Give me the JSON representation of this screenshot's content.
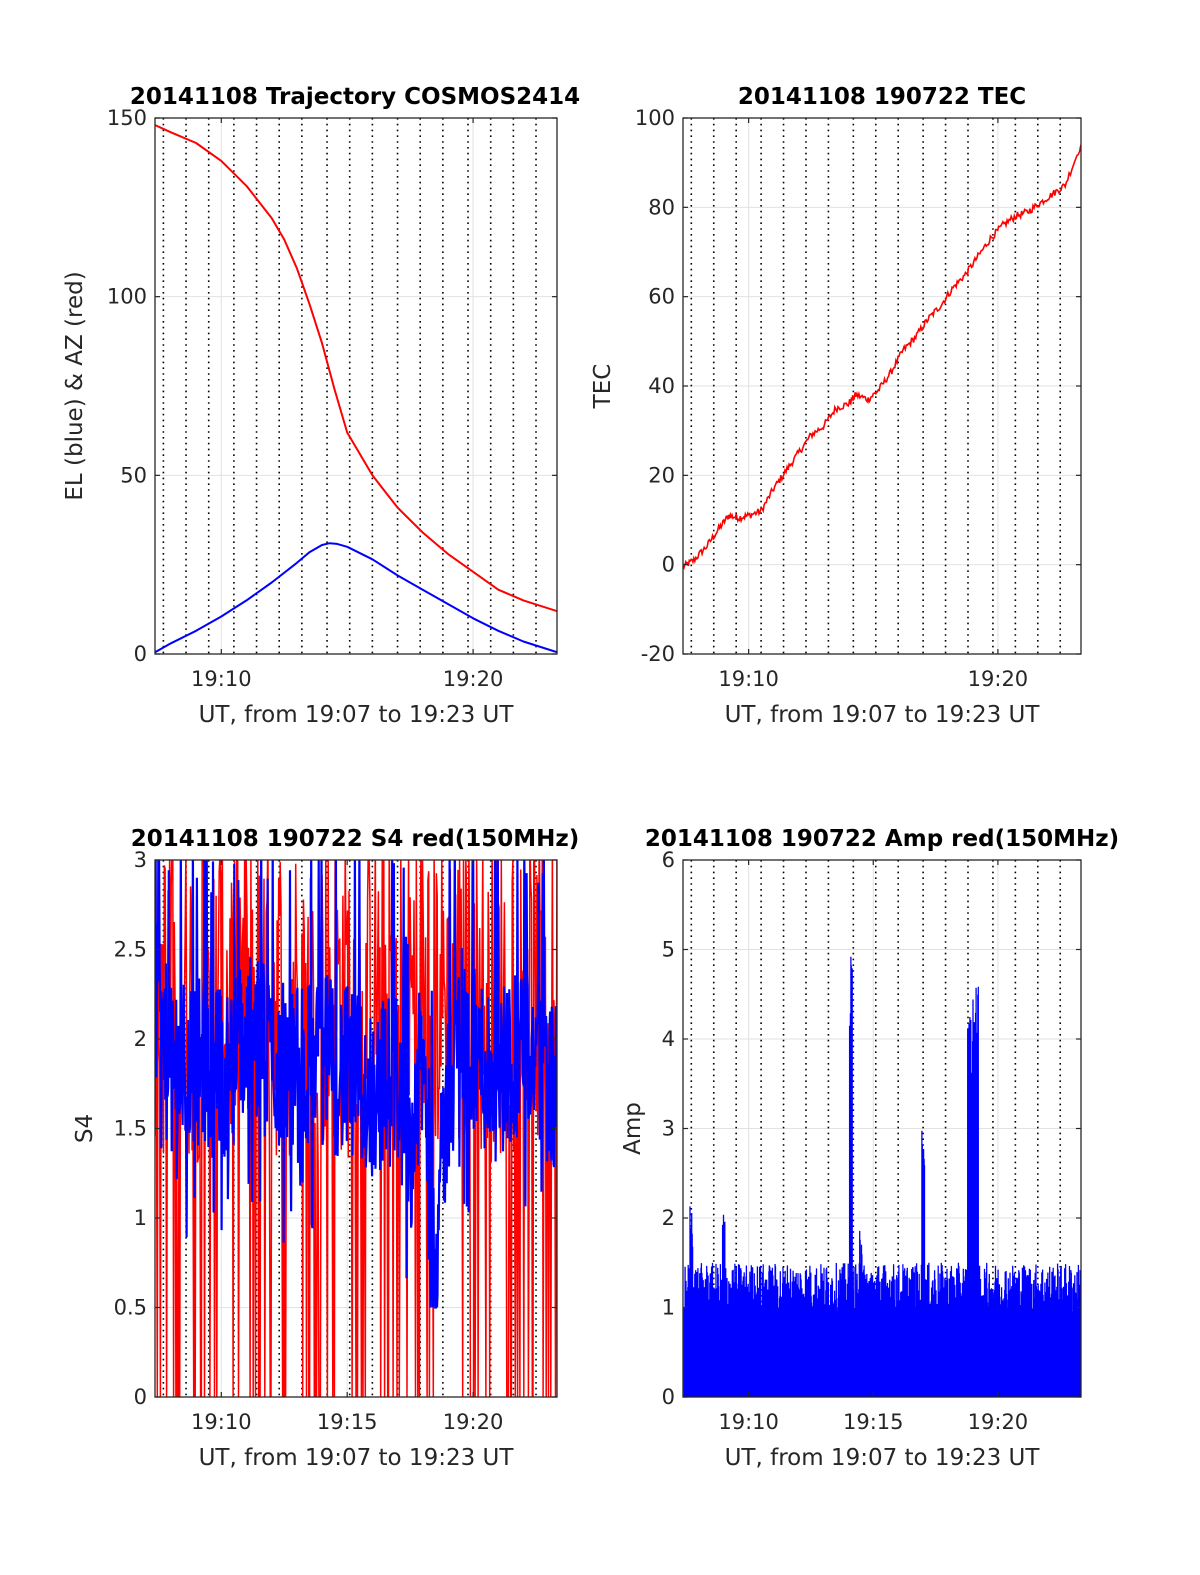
{
  "chart_data": [
    {
      "type": "line",
      "title": "20141108 Trajectory COSMOS2414",
      "xlabel": "UT, from 19:07 to 19:23 UT",
      "ylabel": "EL (blue) & AZ (red)",
      "xlim": [
        "19:07:22",
        "19:23:20"
      ],
      "ylim": [
        0,
        150
      ],
      "yticks": [
        0,
        50,
        100,
        150
      ],
      "xticks": [
        "19:10",
        "19:20"
      ],
      "grid": true,
      "vlines_dotted_minutes": [
        7.7,
        8.6,
        9.5,
        10.5,
        11.4,
        12.3,
        13.2,
        14.2,
        15.1,
        16.0,
        17.0,
        17.9,
        18.8,
        19.8,
        20.7,
        21.6,
        22.5
      ],
      "series": [
        {
          "color": "#ff0000",
          "x": [
            7.37,
            8.0,
            9.0,
            10.0,
            11.0,
            12.0,
            12.5,
            13.0,
            13.5,
            14.0,
            14.5,
            15.0,
            16.0,
            17.0,
            18.0,
            19.0,
            20.0,
            21.0,
            22.0,
            23.33
          ],
          "y": [
            148,
            146,
            143,
            138,
            131,
            122,
            116,
            108,
            98,
            87,
            74,
            62,
            50,
            41,
            34,
            28,
            23,
            18,
            15,
            12
          ]
        },
        {
          "color": "#0000ff",
          "x": [
            7.37,
            8.0,
            9.0,
            10.0,
            11.0,
            12.0,
            13.0,
            13.5,
            14.0,
            14.3,
            14.6,
            15.0,
            16.0,
            17.0,
            18.0,
            19.0,
            20.0,
            21.0,
            22.0,
            23.33
          ],
          "y": [
            0.5,
            3,
            6.5,
            10.5,
            15,
            20,
            25.5,
            28.5,
            30.5,
            31,
            30.8,
            30,
            26.5,
            22,
            18,
            14,
            10,
            6.5,
            3.5,
            0.5
          ]
        }
      ]
    },
    {
      "type": "line",
      "title": "20141108 190722 TEC",
      "xlabel": "UT, from 19:07 to 19:23 UT",
      "ylabel": "TEC",
      "xlim": [
        "19:07:22",
        "19:23:20"
      ],
      "ylim": [
        -20,
        100
      ],
      "yticks": [
        -20,
        0,
        20,
        40,
        60,
        80,
        100
      ],
      "xticks": [
        "19:10",
        "19:20"
      ],
      "grid": true,
      "series": [
        {
          "color": "#ff0000",
          "x": [
            7.37,
            7.8,
            8.3,
            8.8,
            9.2,
            9.6,
            10.0,
            10.5,
            11.0,
            11.5,
            12.0,
            12.5,
            13.0,
            13.5,
            14.0,
            14.3,
            14.8,
            15.2,
            15.7,
            16.2,
            16.7,
            17.2,
            17.7,
            18.2,
            18.7,
            19.2,
            19.7,
            20.2,
            20.7,
            21.2,
            21.7,
            22.2,
            22.7,
            23.33
          ],
          "y": [
            -0.5,
            1,
            4,
            8,
            11,
            10.5,
            11,
            12,
            17,
            21,
            25,
            29,
            31,
            35,
            36,
            38,
            37,
            39,
            43,
            48,
            51,
            55,
            58,
            62,
            65,
            69,
            73,
            76,
            78,
            79,
            81,
            83,
            85,
            94
          ]
        }
      ]
    },
    {
      "type": "line",
      "title": "20141108 190722 S4 red(150MHz)",
      "xlabel": "UT, from 19:07 to 19:23 UT",
      "ylabel": "S4",
      "xlim": [
        "19:07:22",
        "19:23:20"
      ],
      "ylim": [
        0,
        3
      ],
      "yticks": [
        0,
        0.5,
        1,
        1.5,
        2,
        2.5,
        3
      ],
      "xticks": [
        "19:10",
        "19:15",
        "19:20"
      ],
      "grid": true,
      "series": [
        {
          "color": "#ff0000",
          "style": "noisy, 1.2–3 with frequent drops to 0"
        },
        {
          "color": "#0000ff",
          "x": [
            7.37,
            8.0,
            9.0,
            10.0,
            11.0,
            12.0,
            13.0,
            14.0,
            15.0,
            16.0,
            17.0,
            17.5,
            18.0,
            18.5,
            19.0,
            19.5,
            20.0,
            21.0,
            22.0,
            23.0,
            23.33
          ],
          "y": [
            2.2,
            1.8,
            1.9,
            1.8,
            2.0,
            1.9,
            1.8,
            1.9,
            1.8,
            1.7,
            1.8,
            1.4,
            1.9,
            0.8,
            1.7,
            2.1,
            1.9,
            1.8,
            2.0,
            1.8,
            1.7
          ]
        }
      ]
    },
    {
      "type": "line",
      "title": "20141108 190722 Amp red(150MHz)",
      "xlabel": "UT, from 19:07 to 19:23 UT",
      "ylabel": "Amp",
      "xlim": [
        "19:07:22",
        "19:23:20"
      ],
      "ylim": [
        0,
        6
      ],
      "yticks": [
        0,
        1,
        2,
        3,
        4,
        5,
        6
      ],
      "xticks": [
        "19:10",
        "19:15",
        "19:20"
      ],
      "grid": true,
      "series": [
        {
          "color": "#0000ff",
          "style": "dense noise 0–1.6",
          "peaks_x": [
            7.7,
            9.0,
            14.1,
            14.5,
            17.0,
            18.9,
            19.1
          ],
          "peaks_y": [
            2.2,
            2.1,
            5.0,
            1.9,
            3.4,
            4.3,
            4.6
          ]
        }
      ]
    }
  ]
}
